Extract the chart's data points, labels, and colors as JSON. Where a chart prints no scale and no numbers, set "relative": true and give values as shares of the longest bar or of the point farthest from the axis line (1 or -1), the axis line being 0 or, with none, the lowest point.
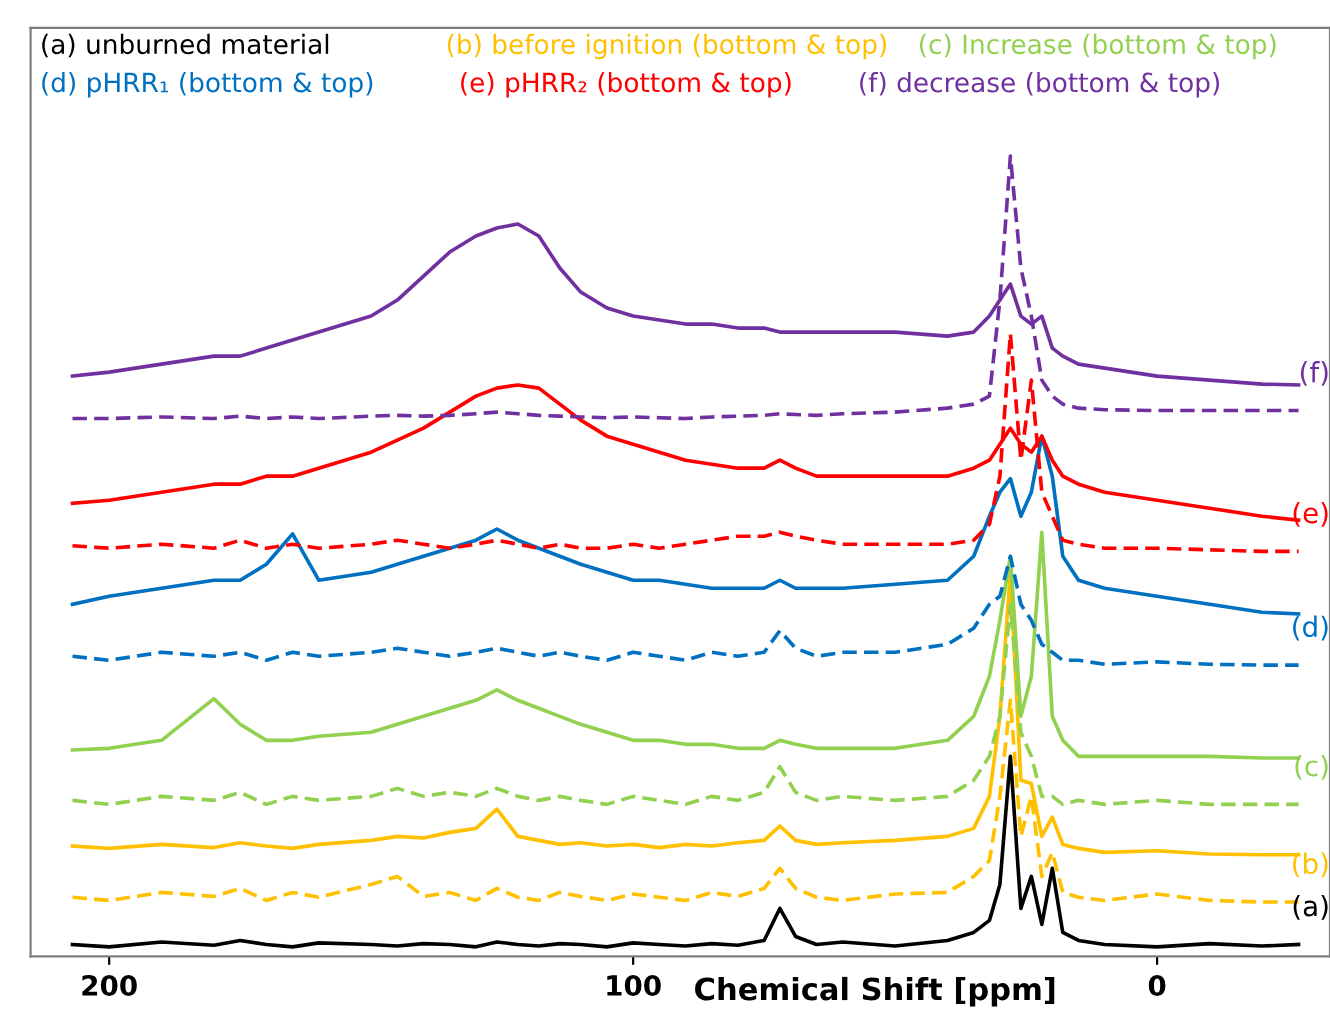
{
  "chart_data": {
    "type": "line",
    "relative": true,
    "xlabel": "Chemical Shift [ppm]",
    "xlim": [
      215,
      -33
    ],
    "xticks": [
      200,
      100,
      0
    ],
    "grid": false,
    "tick_labels": "x",
    "x": [
      207,
      200,
      190,
      180,
      175,
      170,
      165,
      160,
      150,
      145,
      140,
      135,
      130,
      126,
      122,
      118,
      114,
      110,
      105,
      100,
      95,
      90,
      85,
      80,
      75,
      72,
      69,
      65,
      60,
      50,
      40,
      35,
      32,
      30,
      28,
      26,
      24,
      22,
      20,
      18,
      15,
      10,
      0,
      -10,
      -20,
      -27
    ],
    "series": [
      {
        "color": "#000000",
        "line_style": "solid",
        "values": [
          0.015,
          0.012,
          0.018,
          0.014,
          0.02,
          0.015,
          0.012,
          0.017,
          0.015,
          0.013,
          0.016,
          0.015,
          0.012,
          0.018,
          0.015,
          0.013,
          0.016,
          0.015,
          0.012,
          0.017,
          0.015,
          0.013,
          0.016,
          0.014,
          0.02,
          0.06,
          0.025,
          0.015,
          0.018,
          0.013,
          0.02,
          0.03,
          0.045,
          0.09,
          0.25,
          0.06,
          0.1,
          0.04,
          0.11,
          0.03,
          0.02,
          0.015,
          0.012,
          0.016,
          0.013,
          0.015
        ]
      },
      {
        "color": "#ffc000",
        "line_style": "dashed",
        "values": [
          0.074,
          0.07,
          0.08,
          0.075,
          0.085,
          0.07,
          0.08,
          0.074,
          0.09,
          0.1,
          0.075,
          0.08,
          0.07,
          0.085,
          0.074,
          0.07,
          0.08,
          0.075,
          0.07,
          0.078,
          0.074,
          0.07,
          0.08,
          0.075,
          0.085,
          0.11,
          0.085,
          0.074,
          0.07,
          0.078,
          0.08,
          0.1,
          0.12,
          0.2,
          0.32,
          0.15,
          0.2,
          0.1,
          0.13,
          0.08,
          0.074,
          0.07,
          0.078,
          0.07,
          0.068,
          0.068
        ]
      },
      {
        "color": "#ffc000",
        "line_style": "solid",
        "values": [
          0.138,
          0.135,
          0.14,
          0.136,
          0.142,
          0.138,
          0.135,
          0.14,
          0.145,
          0.15,
          0.148,
          0.155,
          0.16,
          0.184,
          0.15,
          0.145,
          0.14,
          0.142,
          0.138,
          0.14,
          0.136,
          0.14,
          0.138,
          0.142,
          0.145,
          0.163,
          0.145,
          0.14,
          0.142,
          0.145,
          0.15,
          0.16,
          0.2,
          0.3,
          0.48,
          0.22,
          0.216,
          0.15,
          0.174,
          0.14,
          0.135,
          0.13,
          0.132,
          0.128,
          0.127,
          0.127
        ]
      },
      {
        "color": "#92d050",
        "line_style": "dashed",
        "values": [
          0.195,
          0.19,
          0.2,
          0.195,
          0.205,
          0.19,
          0.2,
          0.195,
          0.2,
          0.21,
          0.2,
          0.205,
          0.2,
          0.21,
          0.2,
          0.195,
          0.2,
          0.195,
          0.19,
          0.2,
          0.195,
          0.19,
          0.2,
          0.195,
          0.205,
          0.237,
          0.205,
          0.195,
          0.2,
          0.195,
          0.2,
          0.22,
          0.25,
          0.3,
          0.44,
          0.28,
          0.25,
          0.2,
          0.2,
          0.19,
          0.195,
          0.19,
          0.195,
          0.19,
          0.19,
          0.19
        ]
      },
      {
        "color": "#92d050",
        "line_style": "solid",
        "values": [
          0.258,
          0.26,
          0.27,
          0.322,
          0.29,
          0.27,
          0.27,
          0.275,
          0.28,
          0.29,
          0.3,
          0.31,
          0.32,
          0.333,
          0.32,
          0.31,
          0.3,
          0.29,
          0.28,
          0.27,
          0.27,
          0.265,
          0.265,
          0.26,
          0.26,
          0.27,
          0.265,
          0.26,
          0.26,
          0.26,
          0.27,
          0.3,
          0.35,
          0.42,
          0.5,
          0.3,
          0.35,
          0.53,
          0.3,
          0.27,
          0.25,
          0.25,
          0.25,
          0.25,
          0.248,
          0.248
        ]
      },
      {
        "color": "#0070c0",
        "line_style": "dashed",
        "values": [
          0.375,
          0.37,
          0.38,
          0.375,
          0.38,
          0.37,
          0.38,
          0.375,
          0.38,
          0.385,
          0.38,
          0.375,
          0.38,
          0.385,
          0.38,
          0.375,
          0.38,
          0.375,
          0.37,
          0.38,
          0.375,
          0.37,
          0.38,
          0.375,
          0.38,
          0.407,
          0.385,
          0.375,
          0.38,
          0.38,
          0.39,
          0.41,
          0.44,
          0.45,
          0.5,
          0.44,
          0.42,
          0.39,
          0.38,
          0.37,
          0.37,
          0.365,
          0.368,
          0.365,
          0.364,
          0.364
        ]
      },
      {
        "color": "#0070c0",
        "line_style": "solid",
        "values": [
          0.44,
          0.45,
          0.46,
          0.47,
          0.47,
          0.49,
          0.528,
          0.47,
          0.48,
          0.49,
          0.5,
          0.51,
          0.52,
          0.534,
          0.52,
          0.51,
          0.5,
          0.49,
          0.48,
          0.47,
          0.47,
          0.465,
          0.46,
          0.46,
          0.46,
          0.47,
          0.46,
          0.46,
          0.46,
          0.465,
          0.47,
          0.5,
          0.55,
          0.58,
          0.597,
          0.55,
          0.58,
          0.65,
          0.6,
          0.5,
          0.47,
          0.46,
          0.45,
          0.44,
          0.43,
          0.428
        ]
      },
      {
        "color": "#ff0000",
        "line_style": "dashed",
        "values": [
          0.513,
          0.51,
          0.515,
          0.51,
          0.52,
          0.51,
          0.515,
          0.51,
          0.515,
          0.52,
          0.515,
          0.51,
          0.515,
          0.52,
          0.515,
          0.51,
          0.515,
          0.51,
          0.51,
          0.515,
          0.51,
          0.515,
          0.52,
          0.525,
          0.525,
          0.53,
          0.525,
          0.52,
          0.515,
          0.515,
          0.515,
          0.52,
          0.54,
          0.6,
          0.778,
          0.62,
          0.72,
          0.58,
          0.55,
          0.52,
          0.515,
          0.51,
          0.51,
          0.508,
          0.506,
          0.506
        ]
      },
      {
        "color": "#ff0000",
        "line_style": "solid",
        "values": [
          0.566,
          0.57,
          0.58,
          0.59,
          0.59,
          0.6,
          0.6,
          0.61,
          0.63,
          0.645,
          0.66,
          0.68,
          0.7,
          0.71,
          0.714,
          0.71,
          0.69,
          0.67,
          0.65,
          0.64,
          0.63,
          0.62,
          0.615,
          0.61,
          0.61,
          0.62,
          0.61,
          0.6,
          0.6,
          0.6,
          0.6,
          0.61,
          0.62,
          0.64,
          0.66,
          0.64,
          0.63,
          0.65,
          0.62,
          0.6,
          0.59,
          0.58,
          0.57,
          0.56,
          0.55,
          0.545
        ]
      },
      {
        "color": "#7030a0",
        "line_style": "dashed",
        "values": [
          0.672,
          0.672,
          0.674,
          0.672,
          0.675,
          0.672,
          0.674,
          0.672,
          0.675,
          0.676,
          0.675,
          0.676,
          0.678,
          0.68,
          0.678,
          0.676,
          0.675,
          0.674,
          0.673,
          0.674,
          0.673,
          0.672,
          0.674,
          0.675,
          0.676,
          0.678,
          0.677,
          0.676,
          0.678,
          0.68,
          0.685,
          0.69,
          0.7,
          0.82,
          1.0,
          0.86,
          0.8,
          0.72,
          0.7,
          0.69,
          0.685,
          0.683,
          0.682,
          0.682,
          0.682,
          0.682
        ]
      },
      {
        "color": "#7030a0",
        "line_style": "solid",
        "values": [
          0.725,
          0.73,
          0.74,
          0.75,
          0.75,
          0.76,
          0.77,
          0.78,
          0.8,
          0.82,
          0.85,
          0.88,
          0.9,
          0.91,
          0.915,
          0.9,
          0.86,
          0.83,
          0.81,
          0.8,
          0.795,
          0.79,
          0.79,
          0.785,
          0.785,
          0.78,
          0.78,
          0.78,
          0.78,
          0.78,
          0.775,
          0.78,
          0.8,
          0.82,
          0.84,
          0.8,
          0.79,
          0.8,
          0.76,
          0.75,
          0.74,
          0.735,
          0.725,
          0.72,
          0.715,
          0.714
        ]
      }
    ],
    "annotations": [
      "(a) unburned material",
      "(b) before ignition (bottom & top)",
      "(c) Increase (bottom & top)",
      "(d) pHRR₁ (bottom & top)",
      "(e) pHRR₂ (bottom & top)",
      "(f) decrease (bottom & top)",
      "(a)",
      "(b)",
      "(c)",
      "(d)",
      "(e)",
      "(f)"
    ]
  }
}
